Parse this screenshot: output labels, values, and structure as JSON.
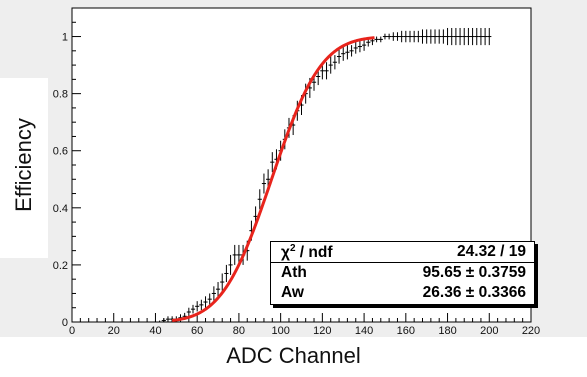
{
  "chart_data": {
    "type": "scatter",
    "xlabel": "ADC Channel",
    "ylabel": "Efficiency",
    "xlim": [
      0,
      220
    ],
    "ylim": [
      0,
      1.1
    ],
    "x_ticks": [
      "0",
      "20",
      "40",
      "60",
      "80",
      "100",
      "120",
      "140",
      "160",
      "180",
      "200",
      "220"
    ],
    "y_ticks": [
      "0",
      "0.2",
      "0.4",
      "0.6",
      "0.8",
      "1"
    ],
    "grid": false,
    "series": [
      {
        "x": [
          40,
          42,
          44,
          46,
          48,
          50,
          52,
          54,
          56,
          58,
          60,
          62,
          64,
          66,
          68,
          70,
          72,
          74,
          76,
          78,
          80,
          82,
          84,
          86,
          88,
          90,
          92,
          94,
          96,
          98,
          100,
          102,
          104,
          106,
          108,
          110,
          112,
          114,
          116,
          118,
          120,
          122,
          124,
          126,
          128,
          130,
          132,
          134,
          136,
          138,
          140,
          142,
          144,
          146,
          148,
          150,
          152,
          154,
          156,
          158,
          160,
          162,
          164,
          166,
          168,
          170,
          172,
          174,
          176,
          178,
          180,
          182,
          184,
          186,
          188,
          190,
          192,
          194,
          196,
          198,
          200
        ],
        "values": [
          0.0,
          0.0,
          0.005,
          0.01,
          0.01,
          0.01,
          0.015,
          0.02,
          0.035,
          0.045,
          0.055,
          0.06,
          0.07,
          0.08,
          0.1,
          0.115,
          0.14,
          0.17,
          0.2,
          0.235,
          0.235,
          0.235,
          0.25,
          0.32,
          0.37,
          0.43,
          0.485,
          0.5,
          0.56,
          0.57,
          0.6,
          0.64,
          0.68,
          0.69,
          0.74,
          0.76,
          0.8,
          0.82,
          0.84,
          0.86,
          0.88,
          0.88,
          0.9,
          0.91,
          0.93,
          0.94,
          0.945,
          0.95,
          0.96,
          0.965,
          0.97,
          0.98,
          0.985,
          0.99,
          0.99,
          1.0,
          1.0,
          1.0,
          1.0,
          1.0,
          1.0,
          1.0,
          1.0,
          1.0,
          1.0,
          1.0,
          1.0,
          1.0,
          1.0,
          1.0,
          1.0,
          1.0,
          1.0,
          1.0,
          1.0,
          1.0,
          1.0,
          1.0,
          1.0,
          1.0,
          1.0
        ],
        "errors": [
          0.005,
          0.005,
          0.008,
          0.01,
          0.01,
          0.01,
          0.012,
          0.012,
          0.015,
          0.015,
          0.018,
          0.018,
          0.02,
          0.02,
          0.025,
          0.025,
          0.03,
          0.03,
          0.035,
          0.035,
          0.035,
          0.035,
          0.035,
          0.035,
          0.035,
          0.035,
          0.035,
          0.035,
          0.035,
          0.035,
          0.035,
          0.035,
          0.035,
          0.035,
          0.035,
          0.035,
          0.035,
          0.035,
          0.03,
          0.03,
          0.03,
          0.03,
          0.03,
          0.025,
          0.025,
          0.025,
          0.025,
          0.02,
          0.02,
          0.02,
          0.02,
          0.015,
          0.015,
          0.01,
          0.01,
          0.01,
          0.01,
          0.015,
          0.015,
          0.02,
          0.02,
          0.02,
          0.02,
          0.02,
          0.025,
          0.025,
          0.025,
          0.025,
          0.025,
          0.025,
          0.03,
          0.03,
          0.03,
          0.03,
          0.03,
          0.03,
          0.03,
          0.03,
          0.03,
          0.03,
          0.03
        ]
      }
    ],
    "fit": {
      "type": "erf-cdf",
      "Ath": 95.65,
      "Aw": 26.36,
      "x_range": [
        48,
        145
      ],
      "color": "#e8241c"
    },
    "stats": {
      "rows": [
        {
          "label": "χ² / ndf",
          "value": "24.32 / 19"
        },
        {
          "label": "Ath",
          "value": "95.65 ± 0.3759"
        },
        {
          "label": "Aw",
          "value": "26.36 ± 0.3366"
        }
      ]
    }
  },
  "colors": {
    "frame": "#000000",
    "fit": "#e8241c",
    "points": "#000000"
  }
}
